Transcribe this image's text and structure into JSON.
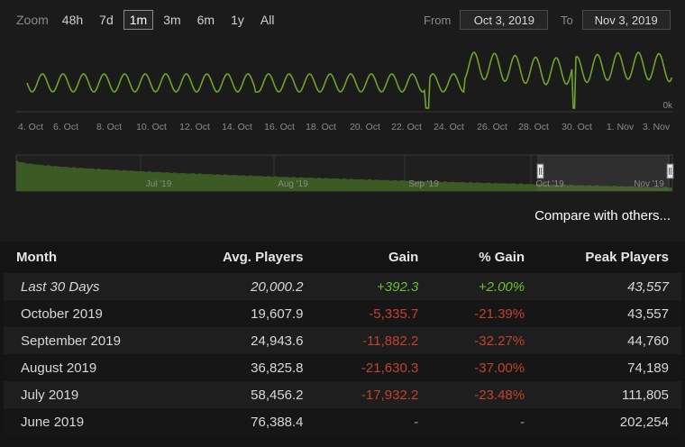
{
  "zoom": {
    "label": "Zoom",
    "options": [
      "48h",
      "7d",
      "1m",
      "3m",
      "6m",
      "1y",
      "All"
    ],
    "active": "1m"
  },
  "range": {
    "from_label": "From",
    "from_value": "Oct 3, 2019",
    "to_label": "To",
    "to_value": "Nov 3, 2019"
  },
  "chart_data": {
    "type": "line",
    "x_tick_labels": [
      "4. Oct",
      "6. Oct",
      "8. Oct",
      "10. Oct",
      "12. Oct",
      "14. Oct",
      "16. Oct",
      "18. Oct",
      "20. Oct",
      "22. Oct",
      "24. Oct",
      "26. Oct",
      "28. Oct",
      "30. Oct",
      "1. Nov",
      "3. Nov"
    ],
    "y_label_min": "0k",
    "series_color": "#6fa32a",
    "navigator_labels": [
      "Jul '19",
      "Aug '19",
      "Sep '19",
      "Oct '19",
      "Nov '19"
    ],
    "navigator_fill": "#3c5a23"
  },
  "compare_label": "Compare with others...",
  "table": {
    "headers": [
      "Month",
      "Avg. Players",
      "Gain",
      "% Gain",
      "Peak Players"
    ],
    "rows": [
      {
        "month": "Last 30 Days",
        "avg": "20,000.2",
        "gain": "+392.3",
        "pct": "+2.00%",
        "peak": "43,557"
      },
      {
        "month": "October 2019",
        "avg": "19,607.9",
        "gain": "-5,335.7",
        "pct": "-21.39%",
        "peak": "43,557"
      },
      {
        "month": "September 2019",
        "avg": "24,943.6",
        "gain": "-11,882.2",
        "pct": "-32.27%",
        "peak": "44,760"
      },
      {
        "month": "August 2019",
        "avg": "36,825.8",
        "gain": "-21,630.3",
        "pct": "-37.00%",
        "peak": "74,189"
      },
      {
        "month": "July 2019",
        "avg": "58,456.2",
        "gain": "-17,932.2",
        "pct": "-23.48%",
        "peak": "111,805"
      },
      {
        "month": "June 2019",
        "avg": "76,388.4",
        "gain": "-",
        "pct": "-",
        "peak": "202,254"
      }
    ]
  }
}
